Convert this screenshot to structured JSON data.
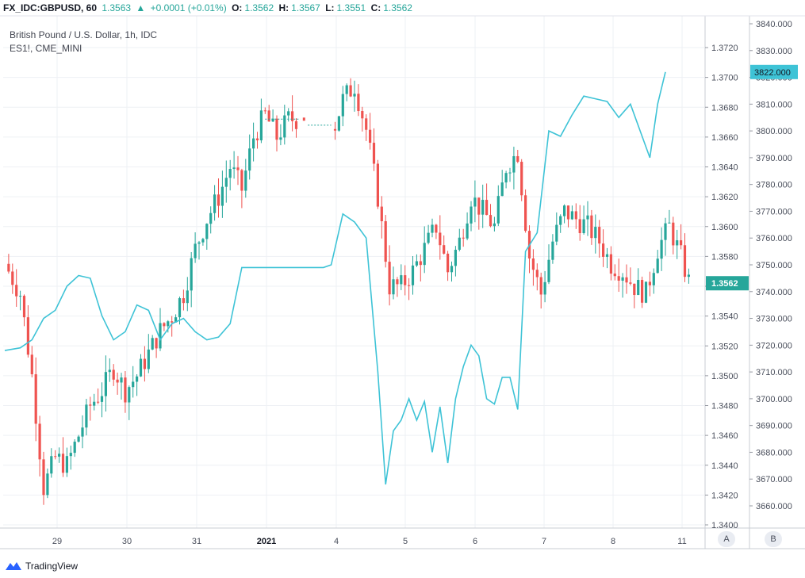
{
  "header": {
    "symbol": "FX_IDC:GBPUSD, 60",
    "last": "1.3563",
    "arrow": "▲",
    "change": "+0.0001 (+0.01%)",
    "o_label": "O:",
    "o": "1.3562",
    "h_label": "H:",
    "h": "1.3567",
    "l_label": "L:",
    "l": "1.3551",
    "c_label": "C:",
    "c": "1.3562"
  },
  "legend": {
    "main": "British Pound / U.S. Dollar, 1h, IDC",
    "compare": "ES1!, CME_MINI"
  },
  "footer": {
    "brand": "TradingView",
    "btn_a": "A",
    "btn_b": "B"
  },
  "colors": {
    "up": "#26a69a",
    "down": "#ef5350",
    "compare": "#3ec3d6",
    "grid": "#eef0f4",
    "axis_text": "#4a4f5c"
  },
  "chart_data": {
    "type": "candlestick_with_compare_line",
    "x_tick_labels": [
      "29",
      "30",
      "31",
      "2021",
      "4",
      "5",
      "6",
      "7",
      "8",
      "11"
    ],
    "left_axis": {
      "name": "GBPUSD",
      "ticks": [
        "1.3400",
        "1.3420",
        "1.3440",
        "1.3460",
        "1.3480",
        "1.3500",
        "1.3520",
        "1.3540",
        "1.3560",
        "1.3580",
        "1.3600",
        "1.3620",
        "1.3640",
        "1.3660",
        "1.3680",
        "1.3700",
        "1.3720"
      ],
      "current_value_label": "1.3562"
    },
    "right_axis": {
      "name": "ES1!",
      "ticks": [
        "3660.000",
        "3670.000",
        "3680.000",
        "3690.000",
        "3700.000",
        "3710.000",
        "3720.000",
        "3730.000",
        "3740.000",
        "3750.000",
        "3760.000",
        "3770.000",
        "3780.000",
        "3790.000",
        "3800.000",
        "3810.000",
        "3820.000",
        "3830.000",
        "3840.000"
      ],
      "current_value_label": "3822.000"
    },
    "gbpusd_close_path": [
      [
        0,
        1.3575
      ],
      [
        4,
        1.3555
      ],
      [
        7,
        1.35
      ],
      [
        10,
        1.3425
      ],
      [
        13,
        1.3445
      ],
      [
        16,
        1.344
      ],
      [
        19,
        1.346
      ],
      [
        22,
        1.348
      ],
      [
        25,
        1.349
      ],
      [
        28,
        1.3505
      ],
      [
        31,
        1.349
      ],
      [
        34,
        1.35
      ],
      [
        37,
        1.3515
      ],
      [
        40,
        1.353
      ],
      [
        43,
        1.354
      ],
      [
        46,
        1.3555
      ],
      [
        49,
        1.3585
      ],
      [
        52,
        1.3605
      ],
      [
        55,
        1.362
      ],
      [
        58,
        1.364
      ],
      [
        61,
        1.3625
      ],
      [
        64,
        1.366
      ],
      [
        67,
        1.3675
      ],
      [
        70,
        1.366
      ],
      [
        73,
        1.3672
      ],
      [
        76,
        1.3672
      ],
      [
        79,
        1.367
      ],
      [
        82,
        1.367
      ],
      [
        84,
        1.366
      ],
      [
        87,
        1.3685
      ],
      [
        90,
        1.3695
      ],
      [
        93,
        1.3665
      ],
      [
        96,
        1.362
      ],
      [
        99,
        1.356
      ],
      [
        102,
        1.356
      ],
      [
        105,
        1.357
      ],
      [
        108,
        1.3585
      ],
      [
        111,
        1.36
      ],
      [
        114,
        1.357
      ],
      [
        117,
        1.359
      ],
      [
        120,
        1.362
      ],
      [
        123,
        1.361
      ],
      [
        126,
        1.36
      ],
      [
        129,
        1.364
      ],
      [
        132,
        1.365
      ],
      [
        135,
        1.358
      ],
      [
        138,
        1.3555
      ],
      [
        141,
        1.359
      ],
      [
        144,
        1.361
      ],
      [
        147,
        1.3605
      ],
      [
        150,
        1.36
      ],
      [
        153,
        1.359
      ],
      [
        156,
        1.3575
      ],
      [
        159,
        1.357
      ],
      [
        162,
        1.356
      ],
      [
        165,
        1.3555
      ],
      [
        168,
        1.3585
      ],
      [
        171,
        1.36
      ],
      [
        174,
        1.358
      ],
      [
        176,
        1.3563
      ]
    ],
    "es1_path": [
      [
        0,
        3718
      ],
      [
        4,
        3719
      ],
      [
        7,
        3722
      ],
      [
        10,
        3730
      ],
      [
        13,
        3733
      ],
      [
        16,
        3742
      ],
      [
        19,
        3746
      ],
      [
        22,
        3745
      ],
      [
        25,
        3731
      ],
      [
        28,
        3722
      ],
      [
        31,
        3725
      ],
      [
        34,
        3735
      ],
      [
        37,
        3733
      ],
      [
        40,
        3722
      ],
      [
        43,
        3728
      ],
      [
        46,
        3730
      ],
      [
        49,
        3725
      ],
      [
        52,
        3722
      ],
      [
        55,
        3723
      ],
      [
        58,
        3728
      ],
      [
        61,
        3749
      ],
      [
        64,
        3749
      ],
      [
        67,
        3749
      ],
      [
        70,
        3749
      ],
      [
        73,
        3749
      ],
      [
        76,
        3749
      ],
      [
        79,
        3749
      ],
      [
        82,
        3749
      ],
      [
        84,
        3750
      ],
      [
        87,
        3769
      ],
      [
        90,
        3766
      ],
      [
        93,
        3760
      ],
      [
        96,
        3710
      ],
      [
        98,
        3668
      ],
      [
        100,
        3688
      ],
      [
        102,
        3692
      ],
      [
        104,
        3700
      ],
      [
        106,
        3692
      ],
      [
        108,
        3699
      ],
      [
        110,
        3680
      ],
      [
        112,
        3697
      ],
      [
        114,
        3676
      ],
      [
        116,
        3700
      ],
      [
        118,
        3712
      ],
      [
        120,
        3720
      ],
      [
        122,
        3716
      ],
      [
        124,
        3700
      ],
      [
        126,
        3698
      ],
      [
        128,
        3708
      ],
      [
        130,
        3708
      ],
      [
        132,
        3696
      ],
      [
        134,
        3755
      ],
      [
        137,
        3762
      ],
      [
        140,
        3800
      ],
      [
        143,
        3798
      ],
      [
        146,
        3806
      ],
      [
        149,
        3813
      ],
      [
        152,
        3812
      ],
      [
        155,
        3811
      ],
      [
        158,
        3805
      ],
      [
        161,
        3810
      ],
      [
        164,
        3798
      ],
      [
        166,
        3790
      ],
      [
        168,
        3810
      ],
      [
        170,
        3822
      ]
    ]
  }
}
